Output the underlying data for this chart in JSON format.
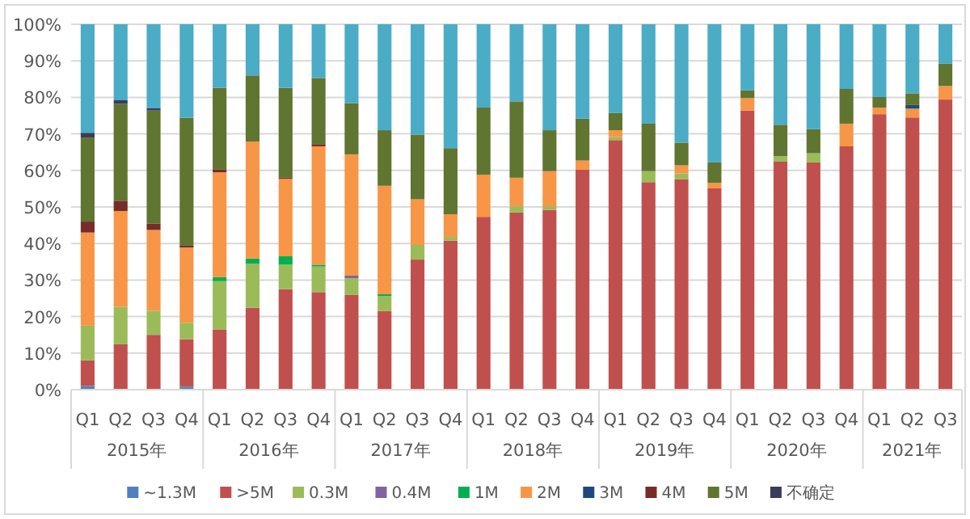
{
  "chart_data": {
    "type": "bar",
    "stacked": true,
    "grid": "y",
    "legend": "bottom",
    "categories": [
      "Q1",
      "Q2",
      "Q3",
      "Q4",
      "Q1",
      "Q2",
      "Q3",
      "Q4",
      "Q1",
      "Q2",
      "Q3",
      "Q4",
      "Q1",
      "Q2",
      "Q3",
      "Q4",
      "Q1",
      "Q2",
      "Q3",
      "Q4",
      "Q1",
      "Q2",
      "Q3",
      "Q4",
      "Q1",
      "Q2",
      "Q3"
    ],
    "annotations": [
      "2015年",
      "2016年",
      "2017年",
      "2018年",
      "2019年",
      "2020年",
      "2021年"
    ],
    "ylim": [
      0,
      100
    ],
    "yticks": [
      {
        "value": 0,
        "label": "0%"
      },
      {
        "value": 10,
        "label": "10%"
      },
      {
        "value": 20,
        "label": "20%"
      },
      {
        "value": 30,
        "label": "30%"
      },
      {
        "value": 40,
        "label": "40%"
      },
      {
        "value": 50,
        "label": "50%"
      },
      {
        "value": 60,
        "label": "60%"
      },
      {
        "value": 70,
        "label": "70%"
      },
      {
        "value": 80,
        "label": "80%"
      },
      {
        "value": 90,
        "label": "90%"
      },
      {
        "value": 100,
        "label": "100%"
      }
    ],
    "series": [
      {
        "name": "~1.3M",
        "color": "#4f81bd",
        "values": [
          1,
          0,
          0,
          0.8,
          0,
          0,
          0,
          0,
          0,
          0,
          0,
          0,
          0,
          0,
          0,
          0,
          0,
          0,
          0,
          0,
          0,
          0,
          0,
          0,
          0,
          0,
          0
        ]
      },
      {
        "name": ">5M",
        "color": "#c0504d",
        "values": [
          7,
          12.4,
          15,
          13,
          16.5,
          22.4,
          27.5,
          26.7,
          25.9,
          21.5,
          35.6,
          40.8,
          47.3,
          48.5,
          49.2,
          60.2,
          68.3,
          56.8,
          57.6,
          55.1,
          76.4,
          62.4,
          62.2,
          66.6,
          75.4,
          74.5,
          79.4
        ]
      },
      {
        "name": "0.3M",
        "color": "#9bbb59",
        "values": [
          9.5,
          10.3,
          6.6,
          4.5,
          13.2,
          12.1,
          6.7,
          7,
          4.6,
          4.1,
          4,
          1,
          0,
          1.7,
          1,
          0,
          0.8,
          3,
          1.6,
          0,
          0,
          1.5,
          2.5,
          0,
          0,
          0,
          0
        ]
      },
      {
        "name": "0.4M",
        "color": "#8064a2",
        "values": [
          0,
          0,
          0,
          0,
          0,
          0,
          0,
          0,
          0.7,
          0,
          0,
          0,
          0,
          0,
          0,
          0,
          0,
          0,
          0,
          0,
          0,
          0,
          0,
          0,
          0,
          0,
          0
        ]
      },
      {
        "name": "1M",
        "color": "#00b050",
        "values": [
          0,
          0,
          0,
          0,
          1.1,
          1.4,
          2.3,
          0.5,
          0,
          0.5,
          0,
          0,
          0,
          0,
          0,
          0,
          0,
          0,
          0,
          0,
          0,
          0,
          0,
          0,
          0,
          0,
          0
        ]
      },
      {
        "name": "2M",
        "color": "#f79646",
        "values": [
          25.5,
          26.2,
          22.1,
          20.6,
          28.7,
          32,
          21.2,
          32.4,
          33.2,
          29.7,
          12.5,
          6.2,
          11.5,
          7.8,
          9.6,
          2.5,
          1.9,
          0,
          2.2,
          1.5,
          3.4,
          0,
          0,
          6.2,
          1.8,
          2.4,
          3.7
        ]
      },
      {
        "name": "3M",
        "color": "#1f497d",
        "values": [
          0,
          0,
          0,
          0,
          0,
          0,
          0,
          0,
          0,
          0,
          0,
          0,
          0,
          0,
          0,
          0,
          0,
          0,
          0,
          0,
          0,
          0,
          0,
          0,
          0,
          1,
          0
        ]
      },
      {
        "name": "4M",
        "color": "#772c2a",
        "values": [
          3,
          2.8,
          1.7,
          0.5,
          0.7,
          0,
          0.3,
          0.6,
          0,
          0,
          0,
          0,
          0,
          0,
          0,
          0,
          0,
          0,
          0,
          0,
          0,
          0,
          0,
          0,
          0,
          0,
          0
        ]
      },
      {
        "name": "5M",
        "color": "#5f7530",
        "values": [
          23,
          26.5,
          31,
          35,
          22.4,
          18.1,
          24.6,
          18.1,
          14,
          15.2,
          17.7,
          18.1,
          18.4,
          20.9,
          11.2,
          11.5,
          4.7,
          13,
          6.2,
          5.6,
          2.1,
          8.6,
          6.6,
          9.5,
          2.9,
          3.2,
          6.1
        ]
      },
      {
        "name": "不确定",
        "color": "#3b3b5c",
        "values": [
          1.3,
          1,
          0.6,
          0,
          0,
          0,
          0,
          0,
          0,
          0,
          0,
          0,
          0,
          0,
          0,
          0,
          0,
          0,
          0,
          0,
          0,
          0,
          0,
          0,
          0,
          0,
          0
        ]
      },
      {
        "color": "#4bacc6",
        "values": [
          29.7,
          20.8,
          23,
          25.6,
          17.4,
          14,
          17.4,
          14.7,
          21.6,
          29,
          30.2,
          33.9,
          22.8,
          21.1,
          29,
          25.8,
          24.3,
          27.2,
          32.4,
          37.8,
          18.1,
          27.5,
          28.7,
          17.7,
          19.9,
          18.9,
          10.8
        ]
      }
    ]
  }
}
